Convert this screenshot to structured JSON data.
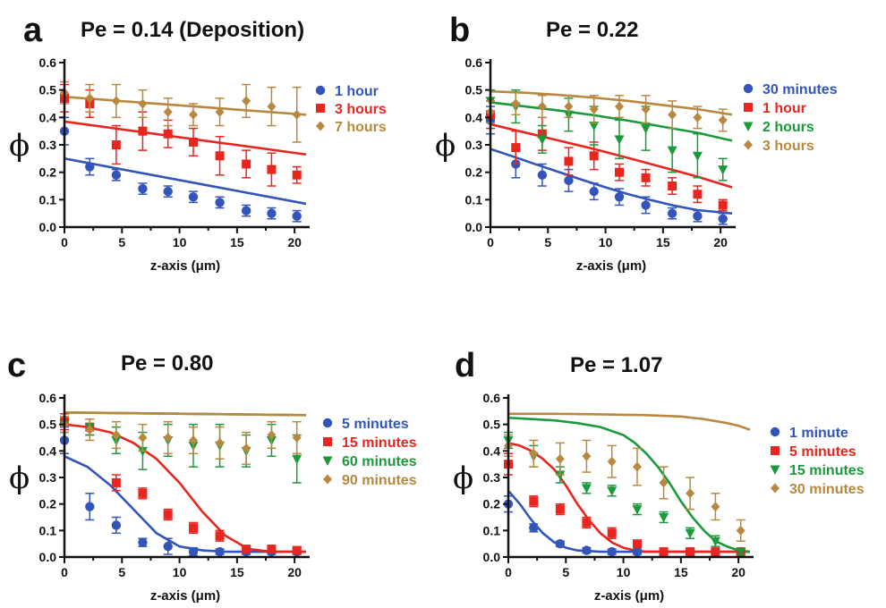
{
  "chart_data": [
    {
      "type": "scatter",
      "panel_label": "a",
      "title": "Pe = 0.14 (Deposition)",
      "xlabel": "z-axis (μm)",
      "ylabel": "ϕ",
      "xlim": [
        0,
        21
      ],
      "ylim": [
        0,
        0.6
      ],
      "xticks": [
        0,
        5,
        10,
        15,
        20
      ],
      "yticks": [
        0.0,
        0.1,
        0.2,
        0.3,
        0.4,
        0.5,
        0.6
      ],
      "legend_position": "right",
      "series": [
        {
          "name": "1 hour",
          "color": "#3355bb",
          "marker": "circle",
          "x": [
            0,
            2.2,
            4.5,
            6.8,
            9,
            11.2,
            13.5,
            15.8,
            18,
            20.2
          ],
          "y": [
            0.35,
            0.22,
            0.19,
            0.14,
            0.13,
            0.11,
            0.09,
            0.06,
            0.05,
            0.04
          ],
          "err": [
            0.05,
            0.03,
            0.02,
            0.02,
            0.02,
            0.02,
            0.02,
            0.02,
            0.02,
            0.02
          ],
          "fit": {
            "x": [
              0,
              21
            ],
            "y": [
              0.25,
              0.085
            ]
          }
        },
        {
          "name": "3 hours",
          "color": "#e8261f",
          "marker": "square",
          "x": [
            0,
            2.2,
            4.5,
            6.8,
            9,
            11.2,
            13.5,
            15.8,
            18,
            20.2
          ],
          "y": [
            0.47,
            0.45,
            0.3,
            0.35,
            0.34,
            0.31,
            0.26,
            0.23,
            0.21,
            0.19
          ],
          "err": [
            0.05,
            0.05,
            0.07,
            0.07,
            0.05,
            0.05,
            0.07,
            0.05,
            0.06,
            0.03
          ],
          "fit": {
            "x": [
              0,
              21
            ],
            "y": [
              0.385,
              0.265
            ]
          }
        },
        {
          "name": "7 hours",
          "color": "#b8883f",
          "marker": "diamond",
          "x": [
            0,
            2.2,
            4.5,
            6.8,
            9,
            11.2,
            13.5,
            15.8,
            18,
            20.2
          ],
          "y": [
            0.49,
            0.47,
            0.46,
            0.45,
            0.42,
            0.41,
            0.42,
            0.46,
            0.44,
            0.41
          ],
          "err": [
            0.04,
            0.05,
            0.06,
            0.05,
            0.05,
            0.04,
            0.05,
            0.06,
            0.07,
            0.1
          ],
          "fit": {
            "x": [
              0,
              21
            ],
            "y": [
              0.475,
              0.41
            ]
          }
        }
      ]
    },
    {
      "type": "scatter",
      "panel_label": "b",
      "title": "Pe = 0.22",
      "xlabel": "z-axis (μm)",
      "ylabel": "ϕ",
      "xlim": [
        0,
        21
      ],
      "ylim": [
        0,
        0.6
      ],
      "xticks": [
        0,
        5,
        10,
        15,
        20
      ],
      "yticks": [
        0.0,
        0.1,
        0.2,
        0.3,
        0.4,
        0.5,
        0.6
      ],
      "legend_position": "right",
      "series": [
        {
          "name": "30 minutes",
          "color": "#3355bb",
          "marker": "circle",
          "x": [
            0,
            2.2,
            4.5,
            6.8,
            9,
            11.2,
            13.5,
            15.8,
            18,
            20.2
          ],
          "y": [
            0.39,
            0.23,
            0.19,
            0.17,
            0.13,
            0.11,
            0.08,
            0.05,
            0.04,
            0.03
          ],
          "err": [
            0.05,
            0.05,
            0.04,
            0.04,
            0.03,
            0.03,
            0.03,
            0.02,
            0.02,
            0.02
          ],
          "fit": {
            "x": [
              0,
              2,
              4,
              6,
              8,
              10,
              12,
              14,
              16,
              18,
              21
            ],
            "y": [
              0.285,
              0.257,
              0.228,
              0.2,
              0.172,
              0.145,
              0.12,
              0.098,
              0.078,
              0.062,
              0.05
            ]
          }
        },
        {
          "name": "1 hour",
          "color": "#e8261f",
          "marker": "square",
          "x": [
            0,
            2.2,
            4.5,
            6.8,
            9,
            11.2,
            13.5,
            15.8,
            18,
            20.2
          ],
          "y": [
            0.41,
            0.29,
            0.34,
            0.24,
            0.26,
            0.2,
            0.18,
            0.15,
            0.12,
            0.08
          ],
          "err": [
            0.05,
            0.06,
            0.06,
            0.05,
            0.05,
            0.03,
            0.03,
            0.03,
            0.03,
            0.02
          ],
          "fit": {
            "x": [
              0,
              3,
              6,
              9,
              12,
              15,
              18,
              21
            ],
            "y": [
              0.375,
              0.345,
              0.315,
              0.285,
              0.252,
              0.218,
              0.184,
              0.145
            ]
          }
        },
        {
          "name": "2 hours",
          "color": "#1a9a3a",
          "marker": "triangle",
          "x": [
            0,
            2.2,
            4.5,
            6.8,
            9,
            11.2,
            13.5,
            15.8,
            18,
            20.2
          ],
          "y": [
            0.46,
            0.44,
            0.32,
            0.41,
            0.37,
            0.32,
            0.36,
            0.28,
            0.26,
            0.21
          ],
          "err": [
            0.04,
            0.06,
            0.05,
            0.06,
            0.07,
            0.07,
            0.08,
            0.08,
            0.08,
            0.04
          ],
          "fit": {
            "x": [
              0,
              3,
              6,
              9,
              12,
              15,
              18,
              21
            ],
            "y": [
              0.455,
              0.44,
              0.425,
              0.408,
              0.388,
              0.366,
              0.344,
              0.315
            ]
          }
        },
        {
          "name": "3 hours",
          "color": "#b8883f",
          "marker": "diamond",
          "x": [
            0,
            2.2,
            4.5,
            6.8,
            9,
            11.2,
            13.5,
            15.8,
            18,
            20.2
          ],
          "y": [
            0.42,
            0.45,
            0.44,
            0.44,
            0.43,
            0.44,
            0.43,
            0.41,
            0.4,
            0.39
          ],
          "err": [
            0.04,
            0.04,
            0.04,
            0.04,
            0.05,
            0.04,
            0.05,
            0.05,
            0.04,
            0.04
          ],
          "fit": {
            "x": [
              0,
              3,
              6,
              9,
              12,
              15,
              18,
              21
            ],
            "y": [
              0.495,
              0.49,
              0.482,
              0.472,
              0.46,
              0.445,
              0.43,
              0.41
            ]
          }
        }
      ]
    },
    {
      "type": "scatter",
      "panel_label": "c",
      "title": "Pe = 0.80",
      "xlabel": "z-axis (μm)",
      "ylabel": "ϕ",
      "xlim": [
        0,
        21
      ],
      "ylim": [
        0,
        0.6
      ],
      "xticks": [
        0,
        5,
        10,
        15,
        20
      ],
      "yticks": [
        0.0,
        0.1,
        0.2,
        0.3,
        0.4,
        0.5,
        0.6
      ],
      "legend_position": "right",
      "series": [
        {
          "name": "5 minutes",
          "color": "#3355bb",
          "marker": "circle",
          "x": [
            0,
            2.2,
            4.5,
            6.8,
            9,
            11.2,
            13.5,
            15.8,
            18,
            20.2
          ],
          "y": [
            0.44,
            0.19,
            0.12,
            0.055,
            0.04,
            0.02,
            0.02,
            0.02,
            0.02,
            0.02
          ],
          "err": [
            0.05,
            0.05,
            0.03,
            0.015,
            0.03,
            0.015,
            0.01,
            0.01,
            0.01,
            0.01
          ],
          "fit": {
            "x": [
              0,
              2,
              4,
              6,
              8,
              10,
              12,
              14,
              16,
              18,
              21
            ],
            "y": [
              0.38,
              0.34,
              0.27,
              0.18,
              0.09,
              0.04,
              0.025,
              0.02,
              0.02,
              0.02,
              0.02
            ]
          }
        },
        {
          "name": "15 minutes",
          "color": "#e8261f",
          "marker": "square",
          "x": [
            0,
            2.2,
            4.5,
            6.8,
            9,
            11.2,
            13.5,
            15.8,
            18,
            20.2
          ],
          "y": [
            0.51,
            0.49,
            0.28,
            0.24,
            0.16,
            0.11,
            0.08,
            0.03,
            0.03,
            0.025
          ],
          "err": [
            0.03,
            0.03,
            0.03,
            0.02,
            0.02,
            0.02,
            0.02,
            0.01,
            0.01,
            0.01
          ],
          "fit": {
            "x": [
              0,
              2,
              4,
              6,
              8,
              10,
              12,
              14,
              16,
              18,
              21
            ],
            "y": [
              0.5,
              0.49,
              0.47,
              0.43,
              0.37,
              0.28,
              0.17,
              0.08,
              0.03,
              0.02,
              0.02
            ]
          }
        },
        {
          "name": "60 minutes",
          "color": "#1a9a3a",
          "marker": "triangle",
          "x": [
            0,
            2.2,
            4.5,
            6.8,
            9,
            11.2,
            13.5,
            15.8,
            18,
            20.2
          ],
          "y": [
            0.5,
            0.49,
            0.44,
            0.4,
            0.44,
            0.42,
            0.42,
            0.4,
            0.44,
            0.37
          ],
          "err": [
            0.03,
            0.03,
            0.05,
            0.07,
            0.06,
            0.08,
            0.08,
            0.06,
            0.06,
            0.09
          ],
          "fit": {
            "x": [
              0,
              21
            ],
            "y": [
              0.545,
              0.535
            ]
          }
        },
        {
          "name": "90 minutes",
          "color": "#b8883f",
          "marker": "diamond",
          "x": [
            0,
            2.2,
            4.5,
            6.8,
            9,
            11.2,
            13.5,
            15.8,
            18,
            20.2
          ],
          "y": [
            0.5,
            0.48,
            0.46,
            0.45,
            0.45,
            0.44,
            0.43,
            0.41,
            0.46,
            0.45
          ],
          "err": [
            0.03,
            0.04,
            0.05,
            0.05,
            0.06,
            0.05,
            0.06,
            0.06,
            0.05,
            0.06
          ],
          "fit": {
            "x": [
              0,
              21
            ],
            "y": [
              0.545,
              0.535
            ]
          }
        }
      ]
    },
    {
      "type": "scatter",
      "panel_label": "d",
      "title": "Pe = 1.07",
      "xlabel": "z-axis (μm)",
      "ylabel": "ϕ",
      "xlim": [
        0,
        21
      ],
      "ylim": [
        0,
        0.6
      ],
      "xticks": [
        0,
        5,
        10,
        15,
        20
      ],
      "yticks": [
        0.0,
        0.1,
        0.2,
        0.3,
        0.4,
        0.5,
        0.6
      ],
      "legend_position": "right",
      "series": [
        {
          "name": "1 minute",
          "color": "#3355bb",
          "marker": "circle",
          "x": [
            0,
            2.2,
            4.5,
            6.8,
            9,
            11.2,
            13.5,
            15.8,
            18,
            20.2
          ],
          "y": [
            0.2,
            0.11,
            0.05,
            0.025,
            0.02,
            0.02,
            0.02,
            0.02,
            0.02,
            0.02
          ],
          "err": [
            0.03,
            0.015,
            0.01,
            0.01,
            0.01,
            0.01,
            0.01,
            0.01,
            0.01,
            0.01
          ],
          "fit": {
            "x": [
              0,
              1,
              2,
              3,
              4,
              5,
              6,
              8,
              10,
              14,
              18,
              21
            ],
            "y": [
              0.25,
              0.2,
              0.14,
              0.09,
              0.055,
              0.035,
              0.025,
              0.02,
              0.02,
              0.02,
              0.02,
              0.02
            ]
          }
        },
        {
          "name": "5 minutes",
          "color": "#e8261f",
          "marker": "square",
          "x": [
            0,
            2.2,
            4.5,
            6.8,
            9,
            11.2,
            13.5,
            15.8,
            18,
            20.2
          ],
          "y": [
            0.35,
            0.21,
            0.18,
            0.13,
            0.09,
            0.05,
            0.02,
            0.02,
            0.02,
            0.02
          ],
          "err": [
            0.04,
            0.02,
            0.02,
            0.02,
            0.02,
            0.01,
            0.01,
            0.01,
            0.01,
            0.01
          ],
          "fit": {
            "x": [
              0,
              1,
              2,
              3,
              4,
              5,
              6,
              7,
              8,
              9,
              10,
              11,
              12,
              14,
              18,
              21
            ],
            "y": [
              0.43,
              0.42,
              0.4,
              0.37,
              0.33,
              0.27,
              0.2,
              0.14,
              0.09,
              0.055,
              0.035,
              0.025,
              0.02,
              0.02,
              0.02,
              0.02
            ]
          }
        },
        {
          "name": "15 minutes",
          "color": "#1a9a3a",
          "marker": "triangle",
          "x": [
            0,
            2.2,
            4.5,
            6.8,
            9,
            11.2,
            13.5,
            15.8,
            18,
            20.2
          ],
          "y": [
            0.44,
            0.38,
            0.31,
            0.26,
            0.25,
            0.18,
            0.15,
            0.09,
            0.06,
            0.02
          ],
          "err": [
            0.03,
            0.04,
            0.03,
            0.02,
            0.02,
            0.02,
            0.02,
            0.02,
            0.02,
            0.01
          ],
          "fit": {
            "x": [
              0,
              2,
              4,
              6,
              8,
              10,
              11,
              12,
              13,
              14,
              15,
              16,
              17,
              18,
              19,
              20,
              21
            ],
            "y": [
              0.525,
              0.52,
              0.515,
              0.505,
              0.49,
              0.46,
              0.43,
              0.39,
              0.34,
              0.28,
              0.21,
              0.15,
              0.1,
              0.06,
              0.04,
              0.025,
              0.02
            ]
          }
        },
        {
          "name": "30 minutes",
          "color": "#b8883f",
          "marker": "diamond",
          "x": [
            0,
            2.2,
            4.5,
            6.8,
            9,
            11.2,
            13.5,
            15.8,
            18,
            20.2
          ],
          "y": [
            0.42,
            0.39,
            0.37,
            0.38,
            0.36,
            0.34,
            0.28,
            0.24,
            0.19,
            0.1
          ],
          "err": [
            0.04,
            0.05,
            0.06,
            0.06,
            0.06,
            0.07,
            0.06,
            0.06,
            0.05,
            0.04
          ],
          "fit": {
            "x": [
              0,
              4,
              8,
              12,
              15,
              17,
              19,
              20,
              21
            ],
            "y": [
              0.54,
              0.54,
              0.538,
              0.535,
              0.53,
              0.52,
              0.505,
              0.495,
              0.48
            ]
          }
        }
      ]
    }
  ]
}
